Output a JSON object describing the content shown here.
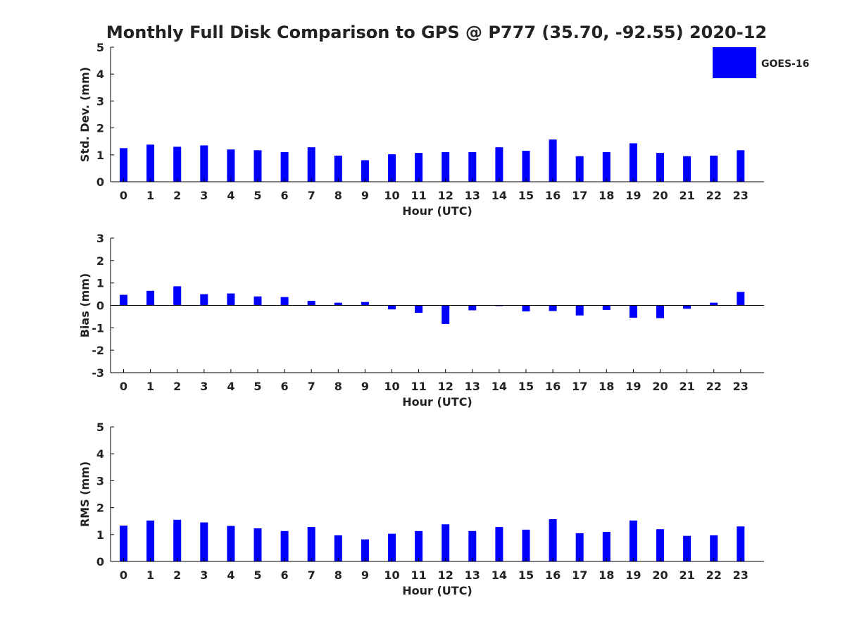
{
  "figure": {
    "title": "Monthly Full Disk Comparison to GPS @ P777 (35.70, -92.55) 2020-12",
    "legend": {
      "label": "GOES-16",
      "color": "#0000ff",
      "placement": "top-right"
    }
  },
  "chart_data": [
    {
      "type": "bar",
      "series": [
        {
          "name": "GOES-16",
          "color": "#0000ff",
          "values": [
            1.25,
            1.38,
            1.3,
            1.35,
            1.2,
            1.17,
            1.1,
            1.28,
            0.97,
            0.8,
            1.02,
            1.07,
            1.1,
            1.1,
            1.28,
            1.15,
            1.57,
            0.95,
            1.1,
            1.43,
            1.07,
            0.95,
            0.97,
            1.17
          ]
        }
      ],
      "categories": [
        "0",
        "1",
        "2",
        "3",
        "4",
        "5",
        "6",
        "7",
        "8",
        "9",
        "10",
        "11",
        "12",
        "13",
        "14",
        "15",
        "16",
        "17",
        "18",
        "19",
        "20",
        "21",
        "22",
        "23"
      ],
      "xlabel": "Hour (UTC)",
      "ylabel": "Std. Dev. (mm)",
      "ylim": [
        0,
        5
      ],
      "yticks": [
        "0",
        "1",
        "2",
        "3",
        "4",
        "5"
      ],
      "grid": false
    },
    {
      "type": "bar",
      "series": [
        {
          "name": "GOES-16",
          "color": "#0000ff",
          "values": [
            0.47,
            0.65,
            0.85,
            0.5,
            0.53,
            0.4,
            0.37,
            0.2,
            0.12,
            0.15,
            -0.18,
            -0.33,
            -0.83,
            -0.22,
            -0.03,
            -0.27,
            -0.25,
            -0.45,
            -0.2,
            -0.55,
            -0.57,
            -0.15,
            0.12,
            0.6
          ]
        }
      ],
      "categories": [
        "0",
        "1",
        "2",
        "3",
        "4",
        "5",
        "6",
        "7",
        "8",
        "9",
        "10",
        "11",
        "12",
        "13",
        "14",
        "15",
        "16",
        "17",
        "18",
        "19",
        "20",
        "21",
        "22",
        "23"
      ],
      "xlabel": "Hour (UTC)",
      "ylabel": "Bias (mm)",
      "ylim": [
        -3,
        3
      ],
      "yticks": [
        "-3",
        "-2",
        "-1",
        "0",
        "1",
        "2",
        "3"
      ],
      "grid": false,
      "zero_line": true
    },
    {
      "type": "bar",
      "series": [
        {
          "name": "GOES-16",
          "color": "#0000ff",
          "values": [
            1.33,
            1.52,
            1.55,
            1.45,
            1.32,
            1.23,
            1.13,
            1.28,
            0.97,
            0.82,
            1.03,
            1.13,
            1.38,
            1.13,
            1.28,
            1.18,
            1.57,
            1.05,
            1.1,
            1.52,
            1.2,
            0.95,
            0.97,
            1.3
          ]
        }
      ],
      "categories": [
        "0",
        "1",
        "2",
        "3",
        "4",
        "5",
        "6",
        "7",
        "8",
        "9",
        "10",
        "11",
        "12",
        "13",
        "14",
        "15",
        "16",
        "17",
        "18",
        "19",
        "20",
        "21",
        "22",
        "23"
      ],
      "xlabel": "Hour (UTC)",
      "ylabel": "RMS (mm)",
      "ylim": [
        0,
        5
      ],
      "yticks": [
        "0",
        "1",
        "2",
        "3",
        "4",
        "5"
      ],
      "grid": false
    }
  ]
}
